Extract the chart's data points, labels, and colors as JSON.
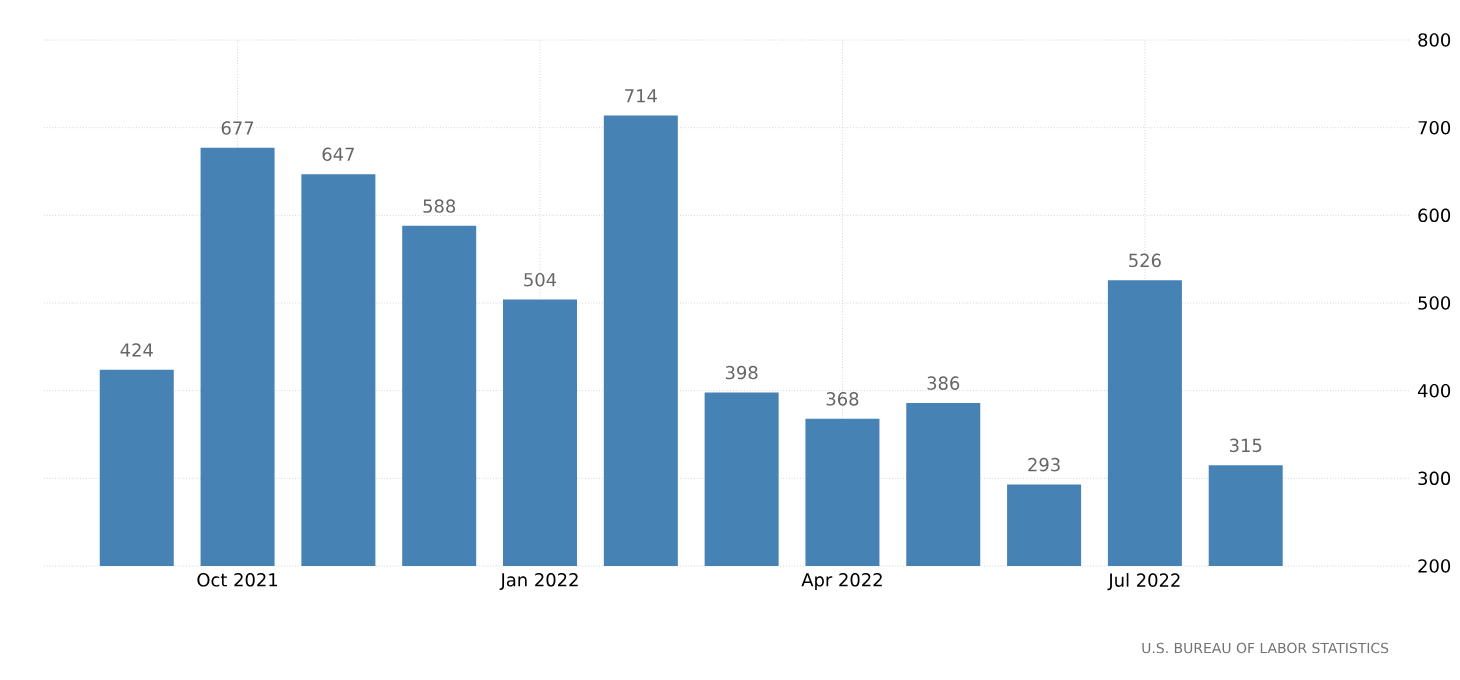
{
  "chart_data": {
    "type": "bar",
    "categories": [
      null,
      "Oct 2021",
      null,
      null,
      "Jan 2022",
      null,
      null,
      "Apr 2022",
      null,
      null,
      "Jul 2022",
      null
    ],
    "values": [
      424,
      677,
      647,
      588,
      504,
      714,
      398,
      368,
      386,
      293,
      526,
      315
    ],
    "color": "#4682b4",
    "data_labels": true,
    "grid": true,
    "ylim": [
      200,
      800
    ],
    "yticks": [
      200,
      300,
      400,
      500,
      600,
      700,
      800
    ],
    "annotations": [
      "U.S. BUREAU OF LABOR STATISTICS"
    ]
  }
}
